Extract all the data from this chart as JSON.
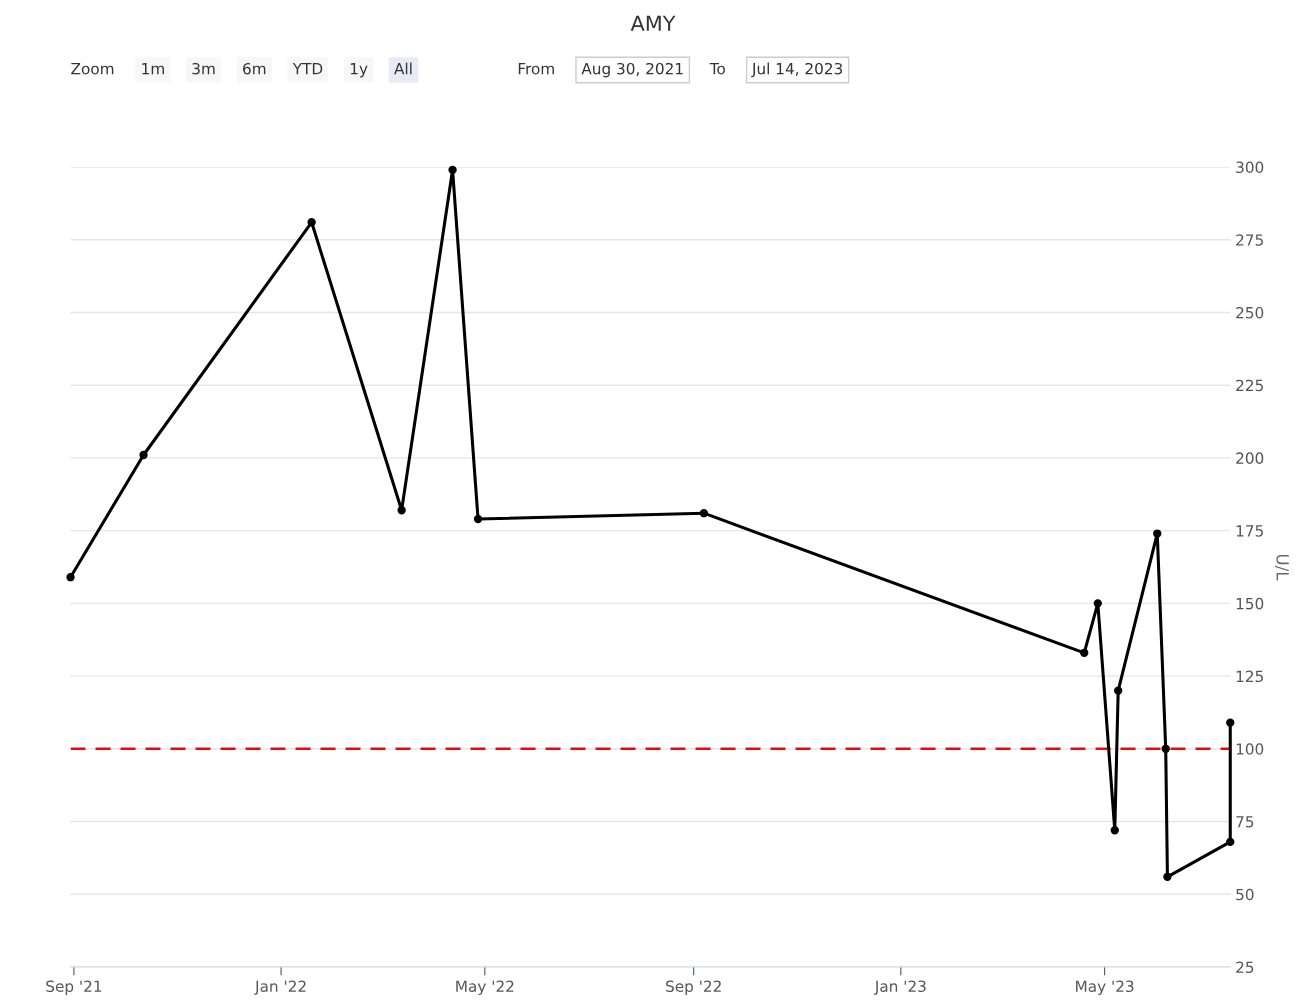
{
  "chart_data": {
    "type": "line",
    "title": "AMY",
    "ylabel": "U/L",
    "x": [
      "2021-08-30",
      "2021-10-12",
      "2022-01-19",
      "2022-03-13",
      "2022-04-12",
      "2022-04-27",
      "2022-09-07",
      "2023-04-19",
      "2023-04-27",
      "2023-05-07",
      "2023-05-09",
      "2023-06-01",
      "2023-06-06",
      "2023-06-07",
      "2023-07-14",
      "2023-07-14"
    ],
    "series": [
      {
        "color": "#000000",
        "values": [
          159,
          201,
          281,
          182,
          299,
          179,
          181,
          133,
          150,
          72,
          120,
          174,
          100,
          56,
          68,
          109
        ]
      }
    ],
    "xlim": [
      "2021-08-30",
      "2023-07-14"
    ],
    "xticks": [
      {
        "value": "2021-09-01",
        "label": "Sep '21"
      },
      {
        "value": "2022-01-01",
        "label": "Jan '22"
      },
      {
        "value": "2022-05-01",
        "label": "May '22"
      },
      {
        "value": "2022-09-01",
        "label": "Sep '22"
      },
      {
        "value": "2023-01-01",
        "label": "Jan '23"
      },
      {
        "value": "2023-05-01",
        "label": "May '23"
      }
    ],
    "ylim": [
      25,
      300
    ],
    "yticks": [
      25,
      50,
      75,
      100,
      125,
      150,
      175,
      200,
      225,
      250,
      275,
      300
    ],
    "ref_lines": [
      {
        "axis": "y",
        "value": 100,
        "color": "#ff0000",
        "line_style": "dashed"
      }
    ],
    "annotations": [
      "Zoom",
      "1m",
      "3m",
      "6m",
      "YTD",
      "1y",
      "All",
      "From",
      "Aug 30, 2021",
      "To",
      "Jul 14, 2023"
    ],
    "grid": "y",
    "marker": "circle",
    "line_style": "solid",
    "legend": false
  }
}
